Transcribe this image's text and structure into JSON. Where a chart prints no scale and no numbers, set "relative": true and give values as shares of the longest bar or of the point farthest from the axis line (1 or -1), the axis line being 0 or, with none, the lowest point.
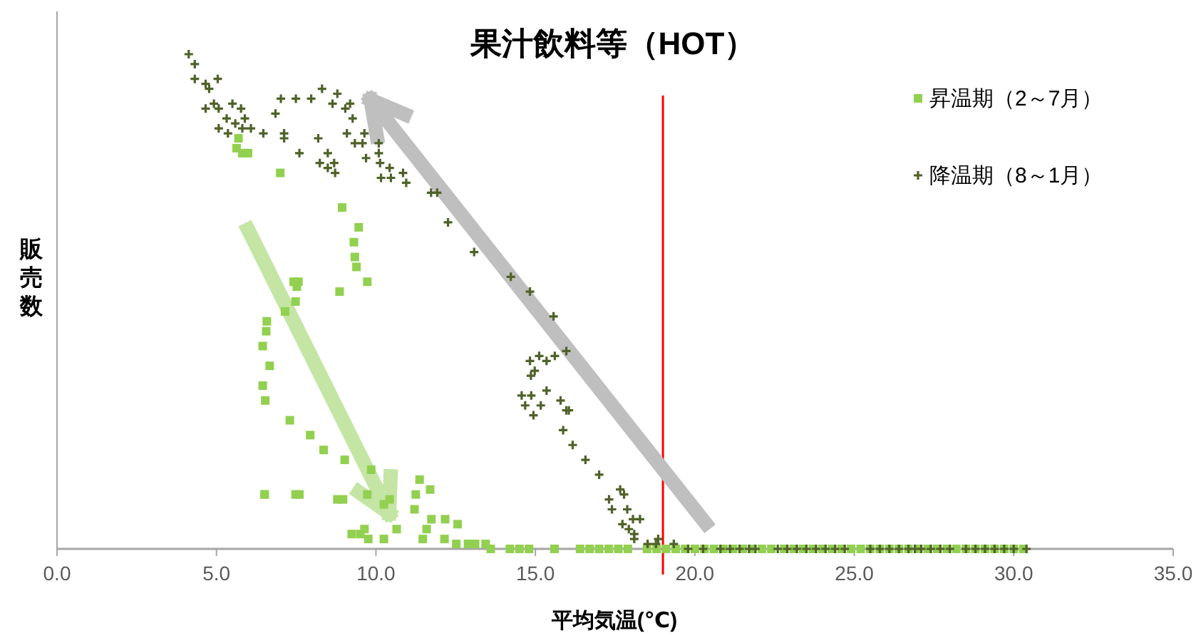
{
  "chart_data": {
    "type": "scatter",
    "title": "果汁飲料等（HOT）",
    "xlabel": "平均気温(℃)",
    "ylabel": "販売数",
    "relative": true,
    "legend": "top right",
    "xlim": [
      0,
      35
    ],
    "xticks": [
      {
        "value": 0,
        "label": "0.0"
      },
      {
        "value": 5,
        "label": "5.0"
      },
      {
        "value": 10,
        "label": "10.0"
      },
      {
        "value": 15,
        "label": "15.0"
      },
      {
        "value": 20,
        "label": "20.0"
      },
      {
        "value": 25,
        "label": "25.0"
      },
      {
        "value": 30,
        "label": "30.0"
      },
      {
        "value": 35,
        "label": "35.0"
      }
    ],
    "ref_lines": [
      {
        "axis": "x",
        "value": 19.0,
        "color": "#ff0000"
      }
    ],
    "series": [
      {
        "name": "昇温期（2～7月）",
        "color": "#92d050",
        "marker": "square",
        "x": [
          5.69,
          5.63,
          5.81,
          5.99,
          7.0,
          8.94,
          9.46,
          9.31,
          9.34,
          9.39,
          9.73,
          8.86,
          7.42,
          7.57,
          7.52,
          7.48,
          7.15,
          6.58,
          6.56,
          6.45,
          6.67,
          6.45,
          6.53,
          7.3,
          7.94,
          8.36,
          9.02,
          9.85,
          6.51,
          6.51,
          7.48,
          7.6,
          8.79,
          8.97,
          9.73,
          10.43,
          10.25,
          11.37,
          11.25,
          11.7,
          11.21,
          11.74,
          12.17,
          12.56,
          11.59,
          10.65,
          9.24,
          9.64,
          9.51,
          9.76,
          10.25,
          11.47,
          12.15,
          12.52,
          12.89,
          13.11,
          13.44,
          13.6,
          14.2,
          14.5,
          14.8,
          15.6,
          16.4,
          16.7,
          17.0,
          17.3,
          17.6,
          17.9,
          18.5,
          18.8,
          19.1,
          19.4,
          19.7,
          20.0,
          20.3,
          20.6,
          20.9,
          21.2,
          21.5,
          21.8,
          22.1,
          22.4,
          22.8,
          23.1,
          23.4,
          23.7,
          24.0,
          24.3,
          24.6,
          24.9,
          25.2,
          25.5,
          25.8,
          26.1,
          26.4,
          26.7,
          27.0,
          27.3,
          27.6,
          27.9,
          28.2,
          28.5,
          28.8,
          29.1,
          29.4,
          29.7,
          30.0,
          30.3
        ],
        "values": [
          0.83,
          0.81,
          0.8,
          0.8,
          0.76,
          0.69,
          0.65,
          0.62,
          0.59,
          0.57,
          0.54,
          0.52,
          0.54,
          0.54,
          0.53,
          0.5,
          0.48,
          0.46,
          0.44,
          0.41,
          0.37,
          0.33,
          0.3,
          0.26,
          0.23,
          0.2,
          0.18,
          0.16,
          0.11,
          0.11,
          0.11,
          0.11,
          0.1,
          0.1,
          0.11,
          0.1,
          0.09,
          0.14,
          0.11,
          0.12,
          0.08,
          0.06,
          0.06,
          0.05,
          0.04,
          0.04,
          0.03,
          0.04,
          0.03,
          0.02,
          0.02,
          0.02,
          0.02,
          0.01,
          0.01,
          0.01,
          0.01,
          0,
          0,
          0,
          0,
          0,
          0,
          0,
          0,
          0,
          0,
          0,
          0,
          0,
          0,
          0,
          0,
          0,
          0,
          0,
          0,
          0,
          0,
          0,
          0,
          0,
          0,
          0,
          0,
          0,
          0,
          0,
          0,
          0,
          0,
          0,
          0,
          0,
          0,
          0,
          0,
          0,
          0,
          0,
          0,
          0,
          0,
          0,
          0,
          0,
          0,
          0
        ]
      },
      {
        "name": "降温期（8～1月）",
        "color": "#4f6228",
        "marker": "cross",
        "x": [
          4.13,
          4.32,
          4.32,
          4.66,
          5.04,
          4.77,
          4.66,
          4.92,
          5.07,
          5.5,
          5.77,
          5.32,
          5.59,
          5.89,
          5.07,
          5.36,
          5.81,
          6.08,
          6.47,
          6.85,
          7.02,
          7.49,
          7.97,
          8.31,
          8.79,
          8.64,
          9.04,
          9.19,
          9.27,
          7.12,
          7.12,
          7.6,
          8.19,
          8.49,
          8.24,
          8.49,
          8.69,
          8.72,
          9.09,
          9.34,
          9.64,
          9.58,
          9.69,
          10.09,
          10.09,
          10.13,
          10.16,
          10.43,
          10.47,
          10.85,
          10.95,
          11.73,
          11.92,
          12.26,
          13.08,
          14.23,
          14.83,
          15.57,
          15.97,
          14.83,
          15.12,
          14.98,
          15.35,
          15.61,
          14.86,
          15.35,
          14.57,
          14.87,
          14.68,
          15.17,
          14.94,
          15.79,
          15.97,
          16.05,
          15.87,
          16.17,
          16.57,
          17.0,
          17.66,
          17.78,
          17.31,
          17.4,
          17.88,
          18.06,
          18.28,
          17.73,
          17.93,
          18.1,
          18.1,
          18.52,
          18.78,
          18.85,
          19.34,
          19.79,
          20.26,
          20.8,
          21.1,
          21.4,
          21.7,
          21.9,
          22.6,
          22.9,
          23.2,
          23.5,
          23.8,
          24.1,
          24.4,
          24.7,
          25.5,
          25.8,
          26.1,
          26.4,
          26.7,
          26.9,
          27.1,
          27.4,
          27.7,
          28.0,
          28.5,
          28.8,
          29.1,
          29.4,
          29.7,
          30.0,
          30.4
        ],
        "values": [
          1.0,
          0.98,
          0.95,
          0.94,
          0.95,
          0.93,
          0.89,
          0.9,
          0.89,
          0.9,
          0.89,
          0.87,
          0.86,
          0.87,
          0.85,
          0.84,
          0.85,
          0.85,
          0.84,
          0.88,
          0.91,
          0.91,
          0.91,
          0.93,
          0.92,
          0.9,
          0.89,
          0.9,
          0.87,
          0.84,
          0.83,
          0.8,
          0.83,
          0.8,
          0.78,
          0.77,
          0.78,
          0.76,
          0.84,
          0.82,
          0.84,
          0.82,
          0.79,
          0.82,
          0.8,
          0.78,
          0.75,
          0.77,
          0.75,
          0.76,
          0.74,
          0.72,
          0.72,
          0.66,
          0.6,
          0.55,
          0.52,
          0.47,
          0.4,
          0.38,
          0.39,
          0.36,
          0.38,
          0.39,
          0.35,
          0.32,
          0.31,
          0.31,
          0.29,
          0.29,
          0.27,
          0.3,
          0.28,
          0.28,
          0.24,
          0.21,
          0.18,
          0.15,
          0.12,
          0.11,
          0.1,
          0.08,
          0.08,
          0.06,
          0.06,
          0.05,
          0.04,
          0.03,
          0.02,
          0.01,
          0.01,
          0.02,
          0.01,
          0,
          0,
          0,
          0,
          0,
          0,
          0,
          0,
          0,
          0,
          0,
          0,
          0,
          0,
          0,
          0,
          0,
          0,
          0,
          0,
          0,
          0,
          0,
          0,
          0,
          0,
          0,
          0,
          0,
          0,
          0,
          0
        ]
      }
    ]
  }
}
